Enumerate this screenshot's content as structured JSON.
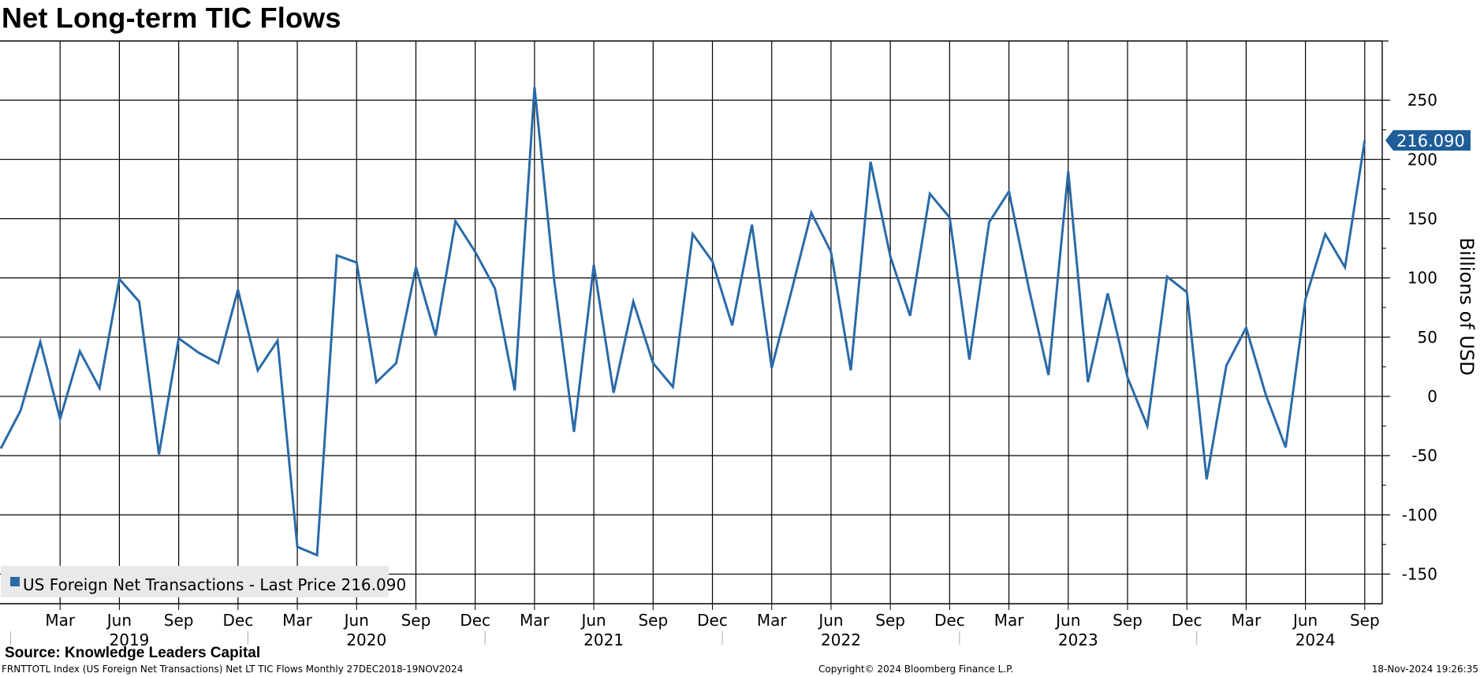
{
  "chart_data": {
    "type": "line",
    "title": "Net Long-term TIC Flows",
    "ylabel": "Billions of USD",
    "ylim": [
      -175,
      300
    ],
    "yticks": [
      250,
      200,
      150,
      100,
      50,
      0,
      -50,
      -100,
      -150
    ],
    "ytick_labels": [
      "250",
      "200",
      "150",
      "100",
      "50",
      "0",
      "-50",
      "-100",
      "-150"
    ],
    "grid": true,
    "legend": {
      "placement": "bottom-left",
      "label": "US Foreign Net Transactions - Last Price 216.090"
    },
    "last_value_label": "216.090",
    "month_ticks": [
      "Mar",
      "Jun",
      "Sep",
      "Dec",
      "Mar",
      "Jun",
      "Sep",
      "Dec",
      "Mar",
      "Jun",
      "Sep",
      "Dec",
      "Mar",
      "Jun",
      "Sep",
      "Dec",
      "Mar",
      "Jun",
      "Sep",
      "Dec",
      "Mar",
      "Jun",
      "Sep"
    ],
    "year_labels": [
      "2019",
      "2020",
      "2021",
      "2022",
      "2023",
      "2024"
    ],
    "series": [
      {
        "name": "US Foreign Net Transactions",
        "color": "#2a6aa8",
        "x": [
          "2018-12",
          "2019-01",
          "2019-02",
          "2019-03",
          "2019-04",
          "2019-05",
          "2019-06",
          "2019-07",
          "2019-08",
          "2019-09",
          "2019-10",
          "2019-11",
          "2019-12",
          "2020-01",
          "2020-02",
          "2020-03",
          "2020-04",
          "2020-05",
          "2020-06",
          "2020-07",
          "2020-08",
          "2020-09",
          "2020-10",
          "2020-11",
          "2020-12",
          "2021-01",
          "2021-02",
          "2021-03",
          "2021-04",
          "2021-05",
          "2021-06",
          "2021-07",
          "2021-08",
          "2021-09",
          "2021-10",
          "2021-11",
          "2021-12",
          "2022-01",
          "2022-02",
          "2022-03",
          "2022-04",
          "2022-05",
          "2022-06",
          "2022-07",
          "2022-08",
          "2022-09",
          "2022-10",
          "2022-11",
          "2022-12",
          "2023-01",
          "2023-02",
          "2023-03",
          "2023-04",
          "2023-05",
          "2023-06",
          "2023-07",
          "2023-08",
          "2023-09",
          "2023-10",
          "2023-11",
          "2023-12",
          "2024-01",
          "2024-02",
          "2024-03",
          "2024-04",
          "2024-05",
          "2024-06",
          "2024-07",
          "2024-08",
          "2024-09"
        ],
        "values": [
          -44,
          -12,
          46,
          -19,
          38,
          7,
          99,
          80,
          -49,
          49,
          37,
          28,
          90,
          22,
          47,
          -127,
          -134,
          119,
          113,
          12,
          28,
          109,
          51,
          148,
          122,
          91,
          5,
          261,
          97,
          -30,
          111,
          3,
          80,
          28,
          8,
          137,
          114,
          60,
          145,
          24,
          89,
          155,
          122,
          22,
          198,
          118,
          68,
          171,
          151,
          31,
          147,
          173,
          92,
          18,
          190,
          12,
          87,
          16,
          -25,
          101,
          88,
          -70,
          26,
          58,
          1,
          -43,
          82,
          137,
          109,
          216.09
        ]
      }
    ]
  },
  "footer": {
    "source": "Source: Knowledge Leaders Capital",
    "left": "FRNTTOTL Index (US Foreign Net Transactions) Net LT TIC Flows  Monthly 27DEC2018-19NOV2024",
    "center": "Copyright© 2024 Bloomberg Finance L.P.",
    "right": "18-Nov-2024 19:26:35"
  }
}
